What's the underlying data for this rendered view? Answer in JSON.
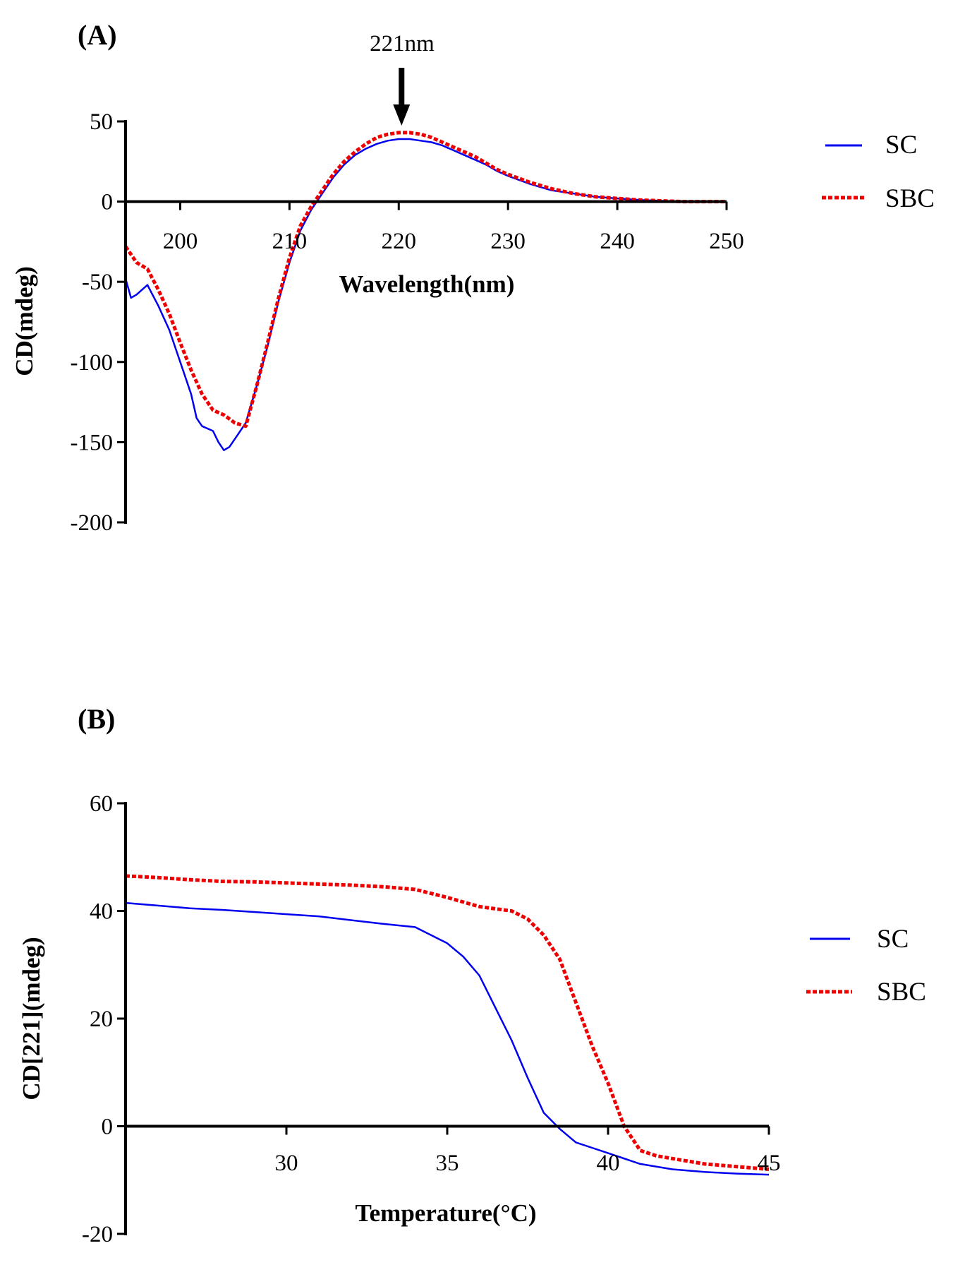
{
  "chart_data": [
    {
      "panel": "(A)",
      "type": "line",
      "title": "",
      "xlabel": "Wavelength(nm)",
      "ylabel": "CD(mdeg)",
      "xlim": [
        195,
        250
      ],
      "ylim": [
        -200,
        50
      ],
      "xticks": [
        200,
        210,
        220,
        230,
        240,
        250
      ],
      "yticks": [
        50,
        0,
        -50,
        -100,
        -150,
        -200
      ],
      "annotation": {
        "text": "221nm",
        "x": 220
      },
      "legend": [
        "SC",
        "SBC"
      ],
      "series": [
        {
          "name": "SC",
          "color": "#0000ee",
          "style": "solid",
          "x": [
            195,
            195.5,
            196,
            197,
            198,
            199,
            200,
            201,
            201.5,
            202,
            203,
            203.5,
            204,
            204.5,
            205,
            206,
            207,
            208,
            209,
            210,
            211,
            212,
            213,
            214,
            215,
            216,
            217,
            218,
            219,
            220,
            221,
            222,
            223,
            224,
            225,
            226,
            227,
            228,
            229,
            230,
            232,
            234,
            236,
            238,
            240,
            242,
            244,
            246,
            248,
            250
          ],
          "y": [
            -48,
            -60,
            -58,
            -52,
            -65,
            -80,
            -100,
            -120,
            -135,
            -140,
            -143,
            -150,
            -155,
            -153,
            -148,
            -138,
            -115,
            -90,
            -62,
            -38,
            -18,
            -5,
            5,
            15,
            23,
            29,
            33,
            36,
            38,
            39,
            39,
            38,
            37,
            35,
            32,
            29,
            26,
            23,
            19,
            16,
            11,
            7,
            5,
            3,
            2,
            1,
            0.5,
            0,
            0,
            0
          ]
        },
        {
          "name": "SBC",
          "color": "#ee0000",
          "style": "dashed",
          "x": [
            195,
            196,
            197,
            198,
            199,
            200,
            201,
            202,
            203,
            204,
            205,
            206,
            207,
            208,
            209,
            210,
            211,
            212,
            213,
            214,
            215,
            216,
            217,
            218,
            219,
            220,
            221,
            222,
            223,
            224,
            225,
            226,
            227,
            228,
            229,
            230,
            232,
            234,
            236,
            238,
            240,
            242,
            244,
            246,
            248,
            250
          ],
          "y": [
            -28,
            -38,
            -42,
            -55,
            -70,
            -88,
            -105,
            -120,
            -130,
            -133,
            -138,
            -140,
            -115,
            -88,
            -60,
            -35,
            -15,
            -3,
            7,
            17,
            25,
            31,
            36,
            40,
            42,
            43,
            43,
            42,
            40,
            37,
            34,
            31,
            28,
            24,
            20,
            17,
            12,
            8,
            5,
            3,
            2,
            1,
            0.5,
            0,
            0,
            0
          ]
        }
      ]
    },
    {
      "panel": "(B)",
      "type": "line",
      "title": "",
      "xlabel": "Temperature(°C)",
      "ylabel": "CD[221](mdeg)",
      "xlim": [
        25,
        45
      ],
      "ylim": [
        -20,
        60
      ],
      "xticks": [
        30,
        35,
        40,
        45
      ],
      "yticks": [
        60,
        40,
        20,
        0,
        -20
      ],
      "legend": [
        "SC",
        "SBC"
      ],
      "series": [
        {
          "name": "SC",
          "color": "#0000ee",
          "style": "solid",
          "x": [
            25,
            26,
            27,
            28,
            29,
            30,
            31,
            32,
            33,
            34,
            35,
            35.5,
            36,
            36.5,
            37,
            37.5,
            38,
            38.5,
            39,
            39.5,
            40,
            41,
            42,
            43,
            44,
            45
          ],
          "y": [
            41.5,
            41,
            40.5,
            40.2,
            39.8,
            39.4,
            39,
            38.3,
            37.6,
            37,
            34,
            31.5,
            28,
            22,
            16,
            9,
            2.5,
            -0.5,
            -3,
            -4,
            -5,
            -7,
            -8,
            -8.5,
            -8.8,
            -9
          ]
        },
        {
          "name": "SBC",
          "color": "#ee0000",
          "style": "dashed",
          "x": [
            25,
            26,
            27,
            28,
            29,
            30,
            31,
            32,
            33,
            34,
            35,
            36,
            37,
            37.5,
            38,
            38.5,
            39,
            39.5,
            40,
            40.5,
            41,
            41.5,
            42,
            43,
            44,
            45
          ],
          "y": [
            46.5,
            46.2,
            45.8,
            45.5,
            45.4,
            45.2,
            45,
            44.8,
            44.5,
            44,
            42.5,
            40.8,
            40,
            38.5,
            35.5,
            31,
            23,
            15,
            8,
            0,
            -4.5,
            -5.5,
            -6,
            -7,
            -7.5,
            -8
          ]
        }
      ]
    }
  ]
}
